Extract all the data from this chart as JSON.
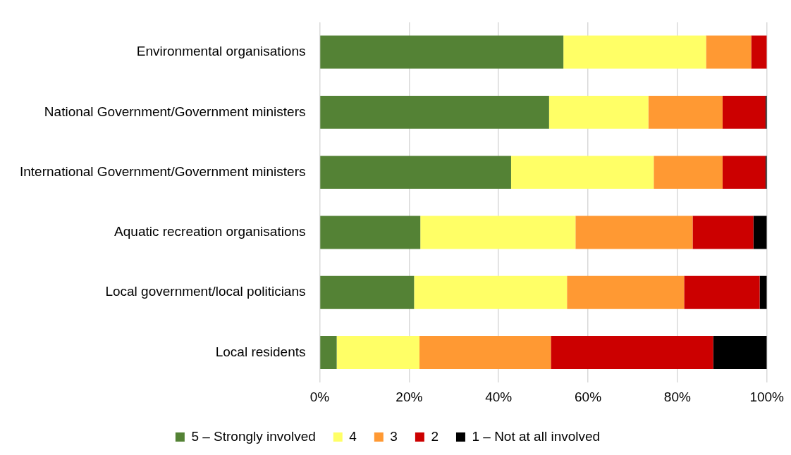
{
  "chart_data": {
    "type": "bar",
    "orientation": "horizontal",
    "stacked": true,
    "categories": [
      "Environmental organisations",
      "National Government/Government ministers",
      "International Government/Government ministers",
      "Aquatic recreation organisations",
      "Local government/local politicians",
      "Local residents"
    ],
    "series": [
      {
        "name": "5 – Strongly involved",
        "color": "#548235",
        "values": [
          54.5,
          51.3,
          42.8,
          22.5,
          21.1,
          3.8
        ]
      },
      {
        "name": "4",
        "color": "#ffff66",
        "values": [
          31.9,
          22.2,
          31.9,
          34.7,
          34.2,
          18.5
        ]
      },
      {
        "name": "3",
        "color": "#ff9933",
        "values": [
          10.1,
          16.6,
          15.4,
          26.2,
          26.2,
          29.4
        ]
      },
      {
        "name": "2",
        "color": "#cc0000",
        "values": [
          3.5,
          9.6,
          9.6,
          13.6,
          16.9,
          36.3
        ]
      },
      {
        "name": "1 – Not at all involved",
        "color": "#000000",
        "values": [
          0,
          0.3,
          0.3,
          3.0,
          1.6,
          12.0
        ]
      }
    ],
    "xlim": [
      0,
      100
    ],
    "xticks": [
      {
        "value": 0,
        "label": "0%"
      },
      {
        "value": 20,
        "label": "20%"
      },
      {
        "value": 40,
        "label": "40%"
      },
      {
        "value": 60,
        "label": "60%"
      },
      {
        "value": 80,
        "label": "80%"
      },
      {
        "value": 100,
        "label": "100%"
      }
    ],
    "grid": "x",
    "legend": "bottom"
  }
}
